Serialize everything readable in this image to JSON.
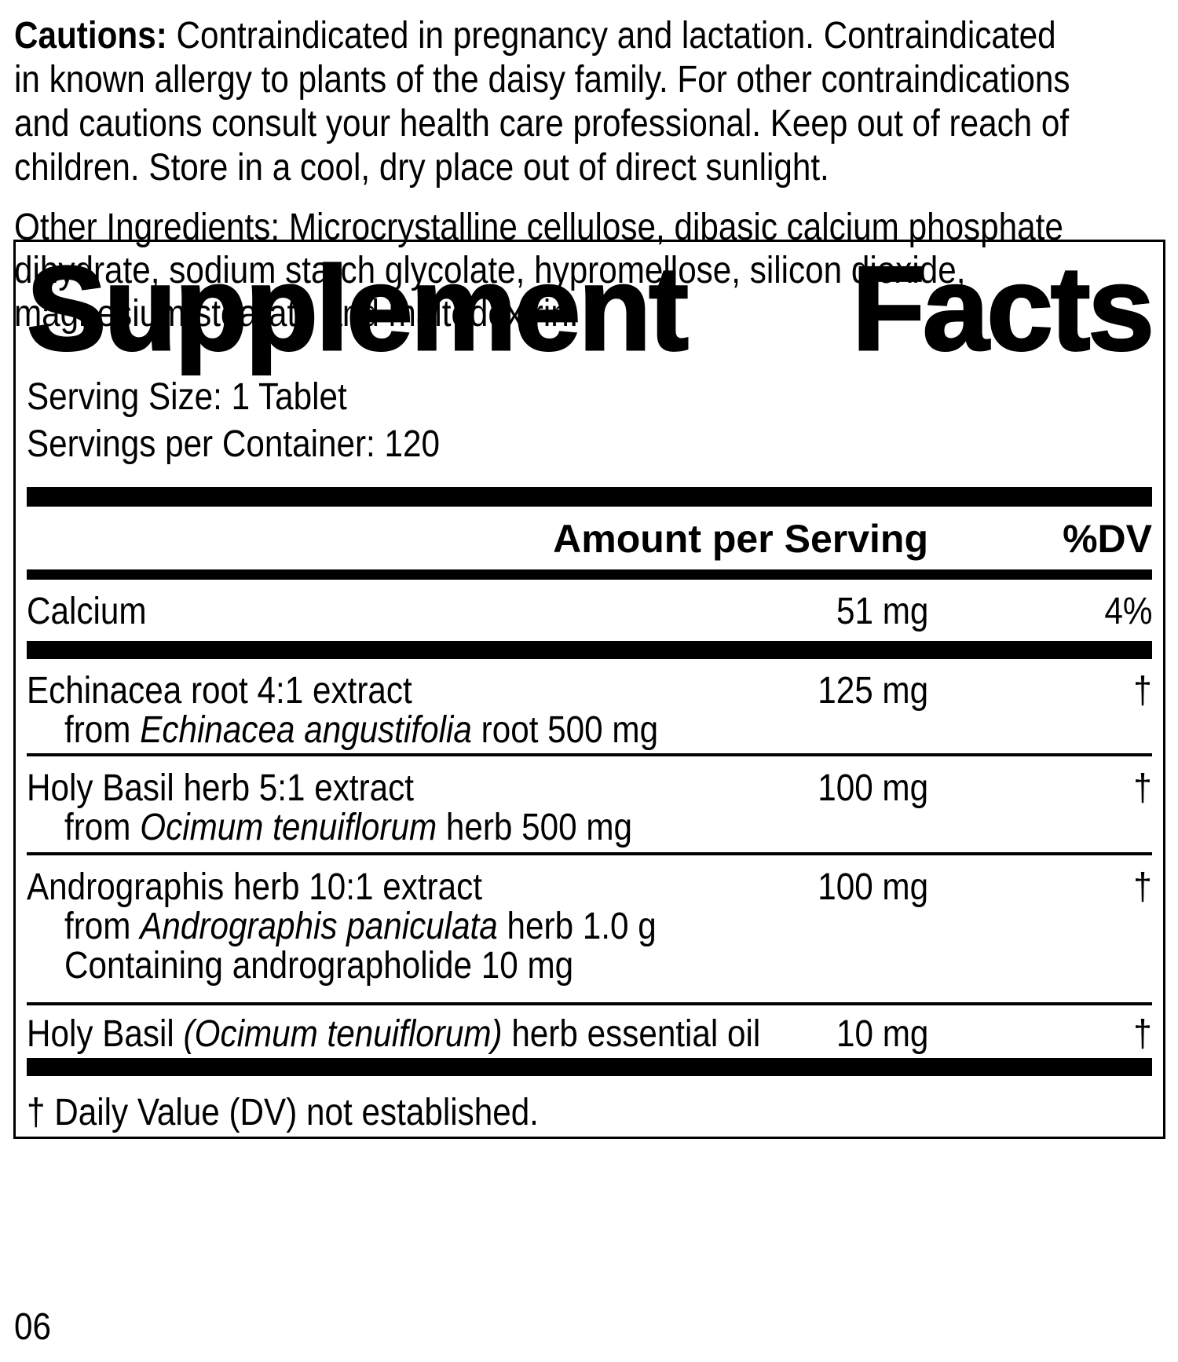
{
  "colors": {
    "text": "#000000",
    "background": "#ffffff"
  },
  "cautions": {
    "lines": [
      [
        {
          "t": "Cautions: ",
          "b": true
        },
        {
          "t": "Contraindicated in pregnancy and lactation. Contraindicated"
        }
      ],
      [
        {
          "t": "in known allergy to plants of the daisy family. For other contraindications"
        }
      ],
      [
        {
          "t": "and cautions consult your health care professional. Keep out of reach of"
        }
      ],
      [
        {
          "t": "children. Store in a cool, dry place out of direct sunlight."
        }
      ]
    ]
  },
  "panel": {
    "title": {
      "word1": "Supplement",
      "word2": "Facts"
    },
    "serving_size_label": "Serving Size: 1 Tablet",
    "servings_per_container_label": "Servings per Container: 120",
    "header": {
      "amount": "Amount per Serving",
      "dv": "%DV"
    },
    "rows": [
      {
        "name": [
          {
            "t": "Calcium"
          }
        ],
        "amount": "51 mg",
        "dv": "4%",
        "subs": [],
        "sep_after": "thick"
      },
      {
        "name": [
          {
            "t": "Echinacea root 4:1 extract"
          }
        ],
        "amount": "125 mg",
        "dv": "†",
        "subs": [
          [
            {
              "t": "from "
            },
            {
              "t": "Echinacea angustifolia",
              "i": true
            },
            {
              "t": " root 500 mg"
            }
          ]
        ],
        "sep_after": "thin"
      },
      {
        "name": [
          {
            "t": "Holy Basil herb 5:1 extract"
          }
        ],
        "amount": "100 mg",
        "dv": "†",
        "subs": [
          [
            {
              "t": "from "
            },
            {
              "t": "Ocimum tenuiflorum",
              "i": true
            },
            {
              "t": " herb 500 mg"
            }
          ]
        ],
        "sep_after": "thin"
      },
      {
        "name": [
          {
            "t": "Andrographis herb 10:1 extract"
          }
        ],
        "amount": "100 mg",
        "dv": "†",
        "subs": [
          [
            {
              "t": "from "
            },
            {
              "t": "Andrographis paniculata",
              "i": true
            },
            {
              "t": " herb 1.0 g"
            }
          ],
          [
            {
              "t": "Containing andrographolide 10 mg"
            }
          ]
        ],
        "sep_after": "thin"
      },
      {
        "name": [
          {
            "t": "Holy Basil "
          },
          {
            "t": "(Ocimum tenuiflorum)",
            "i": true
          },
          {
            "t": " herb essential oil"
          }
        ],
        "amount": "10 mg",
        "dv": "†",
        "subs": [],
        "sep_after": "thick"
      }
    ],
    "footnote": "† Daily Value (DV) not established."
  },
  "other_ingredients": {
    "lines": [
      [
        {
          "t": "Other Ingredients: Microcrystalline cellulose, dibasic calcium phosphate"
        }
      ],
      [
        {
          "t": "dihydrate, sodium starch glycolate, hypromellose, silicon dioxide,"
        }
      ],
      [
        {
          "t": "magnesium stearate and maltodextrin."
        }
      ]
    ]
  },
  "page_code": "06"
}
